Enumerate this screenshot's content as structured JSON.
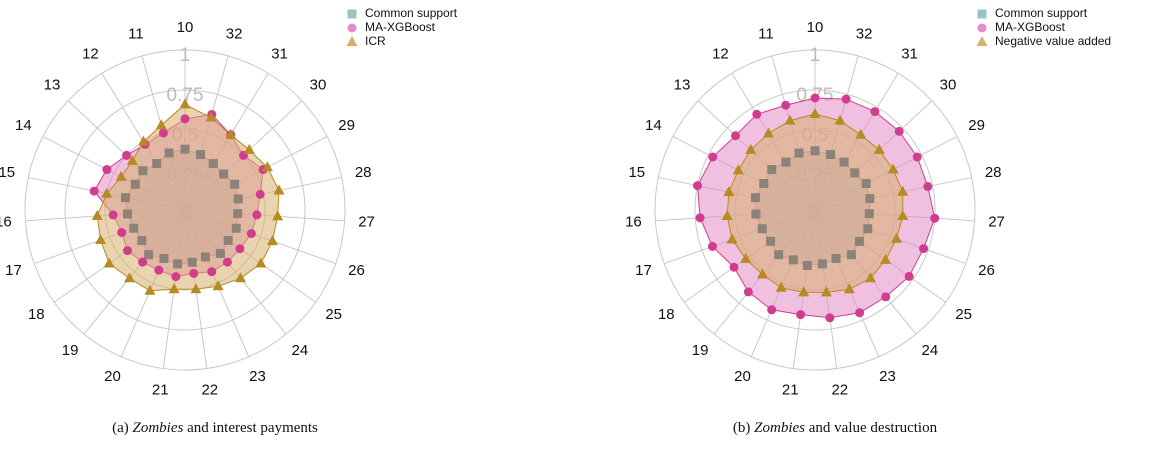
{
  "chart_data": [
    {
      "type": "radar",
      "categories": [
        "10",
        "32",
        "31",
        "30",
        "29",
        "28",
        "27",
        "26",
        "25",
        "24",
        "23",
        "22",
        "21",
        "20",
        "19",
        "18",
        "17",
        "16",
        "15",
        "14",
        "13",
        "12",
        "11"
      ],
      "rlim": [
        0,
        1
      ],
      "rticks": [
        0,
        0.25,
        0.5,
        0.75,
        1
      ],
      "series": [
        {
          "name": "Common support",
          "color": "#9cc3c3",
          "marker_color": "#8c8278",
          "marker": "square",
          "values": [
            0.38,
            0.36,
            0.34,
            0.33,
            0.35,
            0.34,
            0.33,
            0.34,
            0.33,
            0.35,
            0.32,
            0.33,
            0.34,
            0.33,
            0.36,
            0.33,
            0.34,
            0.36,
            0.38,
            0.35,
            0.36,
            0.34,
            0.37
          ]
        },
        {
          "name": "MA-XGBoost",
          "color": "#e48cc8",
          "marker_color": "#d23c8e",
          "marker": "circle",
          "values": [
            0.57,
            0.62,
            0.55,
            0.5,
            0.55,
            0.48,
            0.45,
            0.44,
            0.42,
            0.42,
            0.42,
            0.4,
            0.42,
            0.41,
            0.42,
            0.44,
            0.42,
            0.45,
            0.58,
            0.55,
            0.5,
            0.48,
            0.5
          ]
        },
        {
          "name": "ICR",
          "color": "#d8b070",
          "marker_color": "#b88a22",
          "marker": "triangle",
          "values": [
            0.66,
            0.6,
            0.55,
            0.55,
            0.58,
            0.6,
            0.58,
            0.58,
            0.58,
            0.55,
            0.52,
            0.5,
            0.5,
            0.55,
            0.55,
            0.58,
            0.56,
            0.55,
            0.5,
            0.45,
            0.45,
            0.5,
            0.55
          ]
        }
      ],
      "caption": {
        "label": "(a)",
        "emphasis": "Zombies",
        "text": "and interest payments"
      }
    },
    {
      "type": "radar",
      "categories": [
        "10",
        "32",
        "31",
        "30",
        "29",
        "28",
        "27",
        "26",
        "25",
        "24",
        "23",
        "22",
        "21",
        "20",
        "19",
        "18",
        "17",
        "16",
        "15",
        "14",
        "13",
        "12",
        "11"
      ],
      "rlim": [
        0,
        1
      ],
      "rticks": [
        0,
        0.25,
        0.5,
        0.75,
        1
      ],
      "series": [
        {
          "name": "Common support",
          "color": "#9cc3c3",
          "marker_color": "#8c8278",
          "marker": "square",
          "values": [
            0.37,
            0.36,
            0.35,
            0.34,
            0.36,
            0.35,
            0.34,
            0.35,
            0.34,
            0.36,
            0.33,
            0.34,
            0.35,
            0.34,
            0.36,
            0.34,
            0.35,
            0.37,
            0.38,
            0.36,
            0.37,
            0.35,
            0.37
          ]
        },
        {
          "name": "MA-XGBoost",
          "color": "#e48cc8",
          "marker_color": "#d23c8e",
          "marker": "circle",
          "values": [
            0.7,
            0.72,
            0.72,
            0.72,
            0.72,
            0.72,
            0.75,
            0.72,
            0.72,
            0.7,
            0.7,
            0.68,
            0.66,
            0.68,
            0.66,
            0.62,
            0.68,
            0.72,
            0.75,
            0.72,
            0.68,
            0.7,
            0.68
          ]
        },
        {
          "name": "Negative value added",
          "color": "#d8b070",
          "marker_color": "#b88a22",
          "marker": "triangle",
          "values": [
            0.6,
            0.58,
            0.55,
            0.55,
            0.55,
            0.56,
            0.55,
            0.54,
            0.54,
            0.55,
            0.54,
            0.52,
            0.52,
            0.53,
            0.52,
            0.53,
            0.55,
            0.55,
            0.55,
            0.54,
            0.55,
            0.56,
            0.58
          ]
        }
      ],
      "caption": {
        "label": "(b)",
        "emphasis": "Zombies",
        "text": "and value destruction"
      }
    }
  ]
}
